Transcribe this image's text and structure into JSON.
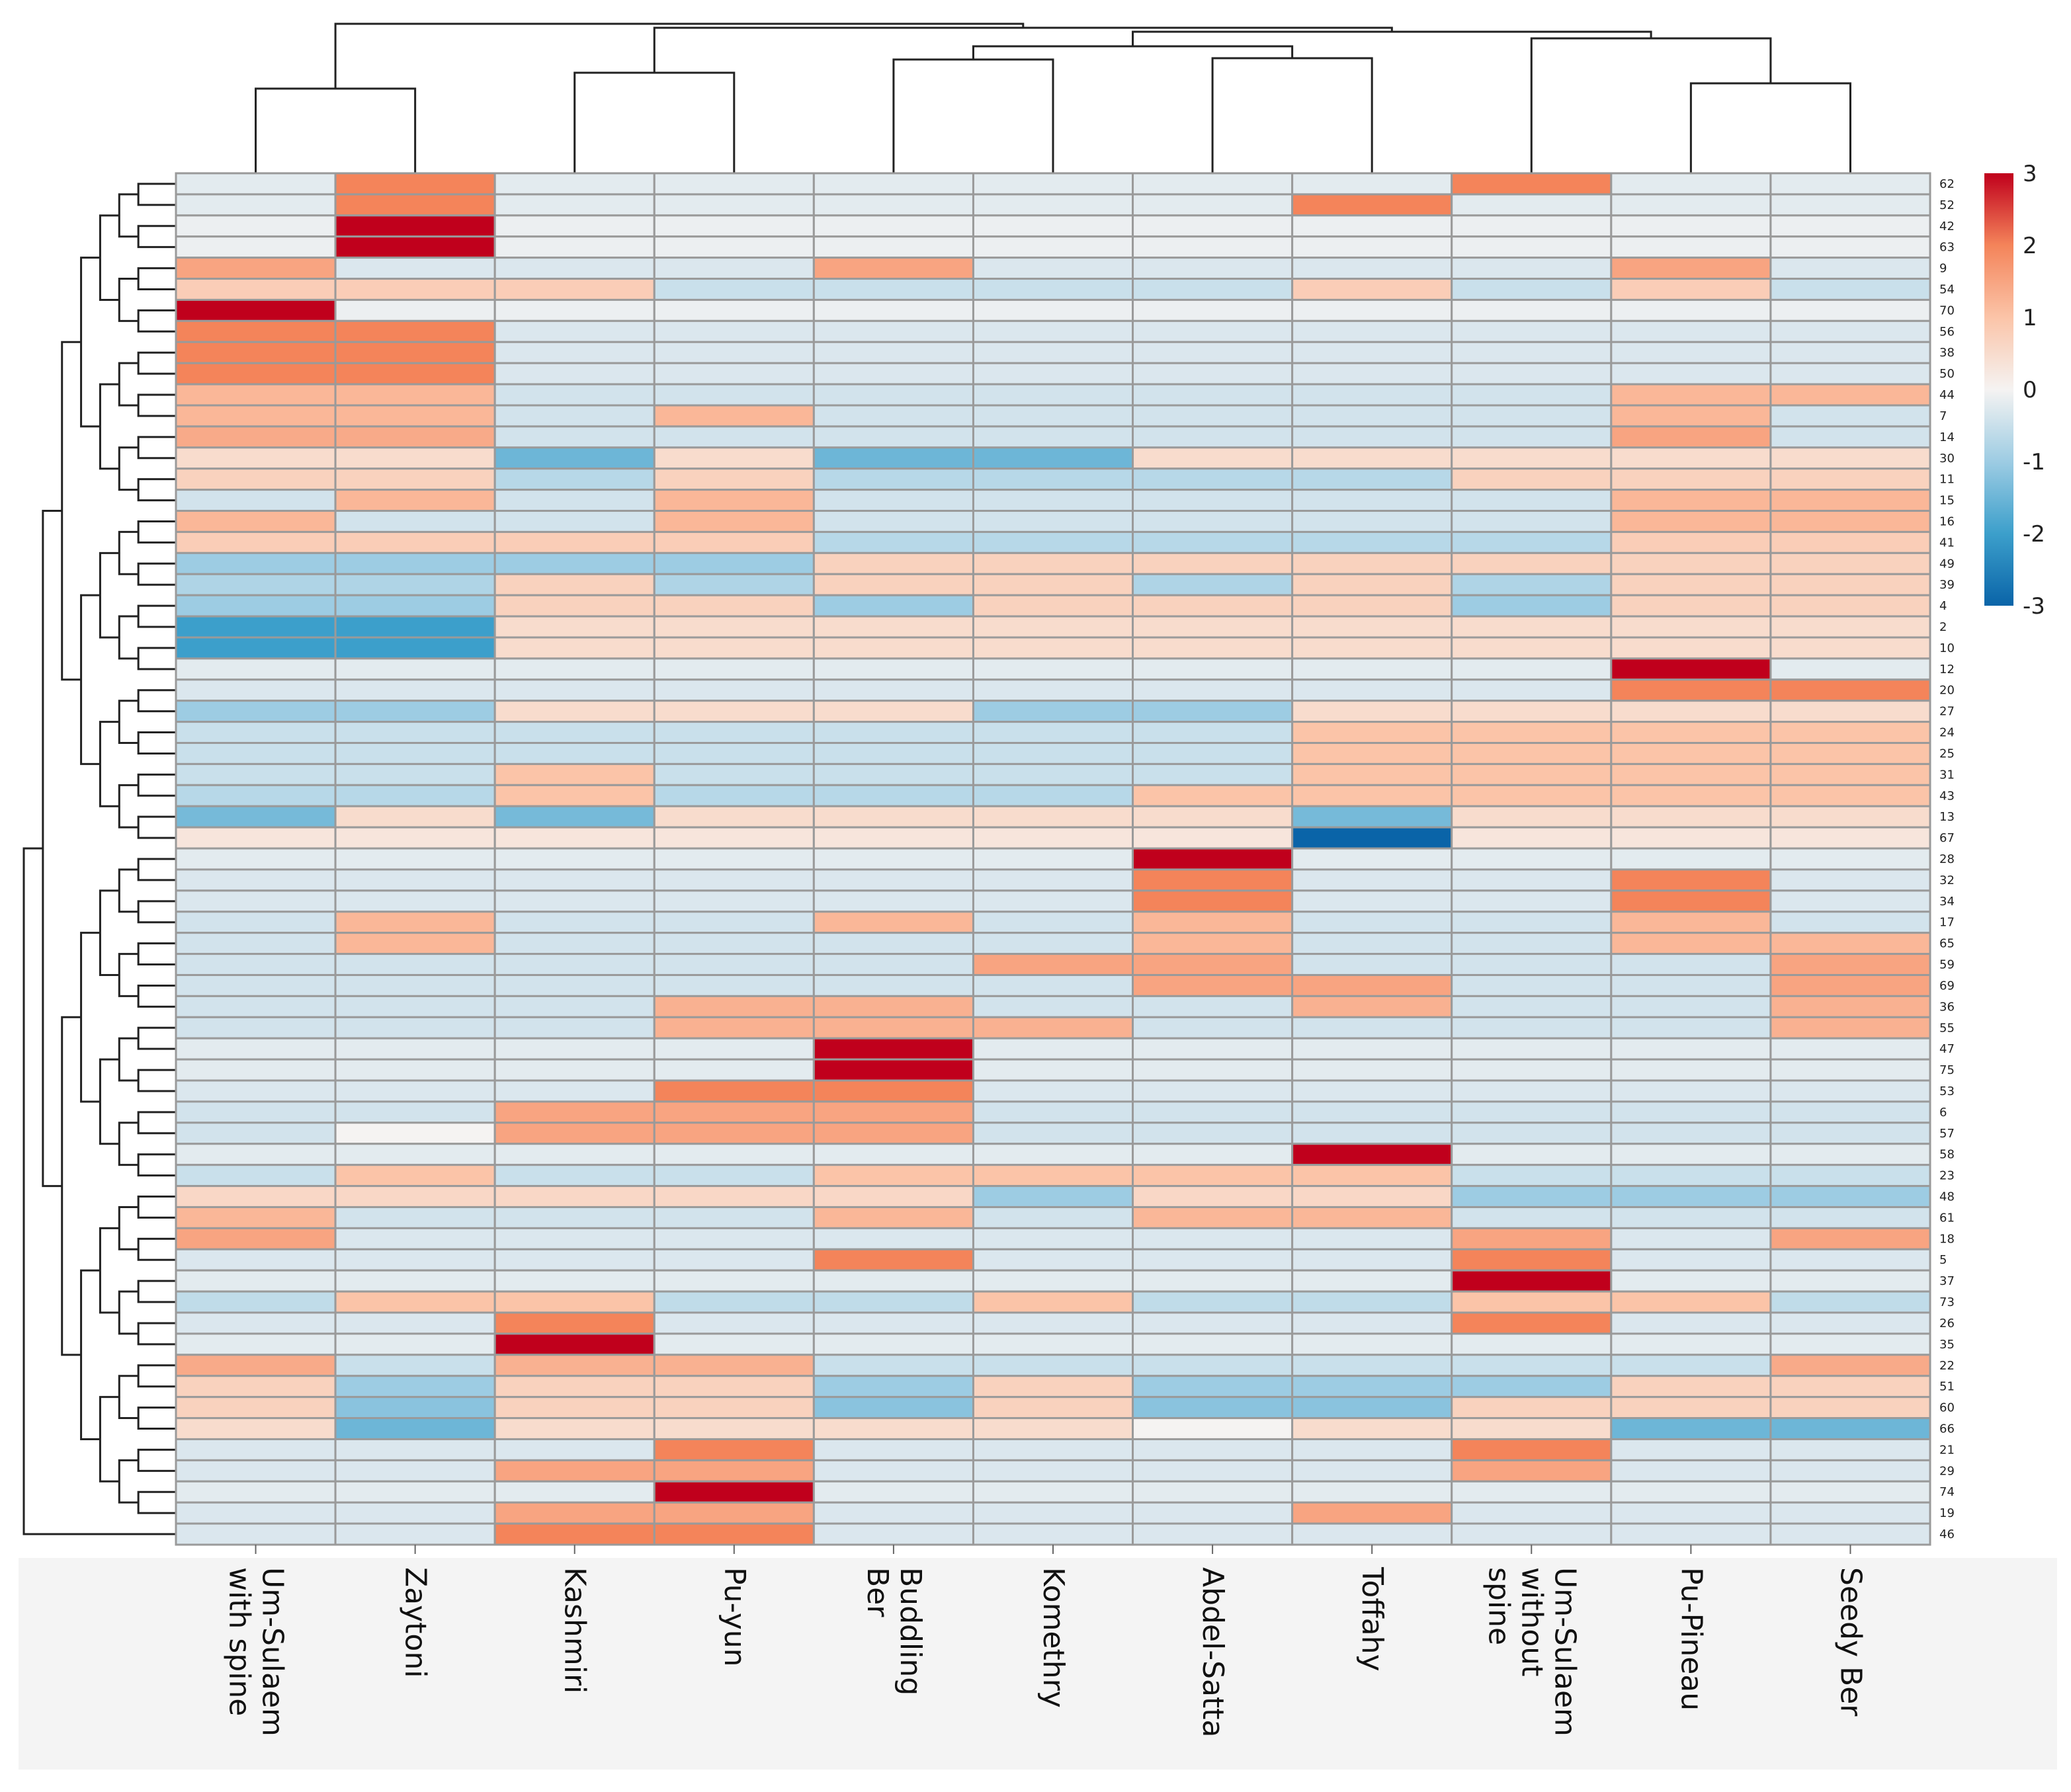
{
  "chart_data": {
    "type": "heatmap",
    "title": "",
    "columns": [
      "Um-Sulaem\nwith spine",
      "Zaytoni",
      "Kashmiri",
      "Pu-yun",
      "Buddling\nBer",
      "Komethry",
      "Abdel-Satta",
      "Toffahy",
      "Um-Sulaem\nwithout\nspine",
      "Pu-Pineau",
      "Seedy Ber"
    ],
    "rows": [
      "62",
      "52",
      "42",
      "63",
      "9",
      "54",
      "70",
      "56",
      "38",
      "50",
      "44",
      "7",
      "14",
      "30",
      "11",
      "15",
      "16",
      "41",
      "49",
      "39",
      "4",
      "2",
      "10",
      "12",
      "20",
      "27",
      "24",
      "25",
      "31",
      "43",
      "13",
      "67",
      "28",
      "32",
      "34",
      "17",
      "65",
      "59",
      "69",
      "36",
      "55",
      "47",
      "75",
      "53",
      "6",
      "57",
      "58",
      "23",
      "48",
      "61",
      "18",
      "5",
      "37",
      "73",
      "26",
      "35",
      "22",
      "51",
      "60",
      "66",
      "21",
      "29",
      "74",
      "19",
      "46"
    ],
    "values": [
      [
        -0.2,
        2,
        -0.2,
        -0.2,
        -0.2,
        -0.2,
        -0.2,
        -0.2,
        2,
        -0.2,
        -0.2
      ],
      [
        -0.2,
        2,
        -0.2,
        -0.2,
        -0.2,
        -0.2,
        -0.2,
        2,
        -0.2,
        -0.2,
        -0.2
      ],
      [
        -0.1,
        3,
        -0.1,
        -0.1,
        -0.1,
        -0.1,
        -0.1,
        -0.1,
        -0.1,
        -0.1,
        -0.1
      ],
      [
        -0.1,
        3,
        -0.1,
        -0.1,
        -0.1,
        -0.1,
        -0.1,
        -0.1,
        -0.1,
        -0.1,
        -0.1
      ],
      [
        1.5,
        -0.3,
        -0.3,
        -0.3,
        1.5,
        -0.3,
        -0.3,
        -0.3,
        -0.3,
        1.5,
        -0.3
      ],
      [
        0.8,
        0.8,
        0.8,
        -0.5,
        -0.5,
        -0.5,
        -0.5,
        0.8,
        -0.5,
        0.8,
        -0.5
      ],
      [
        3,
        -0.1,
        -0.1,
        -0.1,
        -0.1,
        -0.1,
        -0.1,
        -0.1,
        -0.1,
        -0.1,
        -0.1
      ],
      [
        2,
        2,
        -0.3,
        -0.3,
        -0.3,
        -0.3,
        -0.3,
        -0.3,
        -0.3,
        -0.3,
        -0.3
      ],
      [
        2,
        2,
        -0.3,
        -0.3,
        -0.3,
        -0.3,
        -0.3,
        -0.3,
        -0.3,
        -0.3,
        -0.3
      ],
      [
        2,
        2,
        -0.3,
        -0.3,
        -0.3,
        -0.3,
        -0.3,
        -0.3,
        -0.3,
        -0.3,
        -0.3
      ],
      [
        1.2,
        1.2,
        -0.4,
        -0.4,
        -0.4,
        -0.4,
        -0.4,
        -0.4,
        -0.4,
        1.2,
        1.2
      ],
      [
        1.2,
        1.2,
        -0.4,
        1.2,
        -0.4,
        -0.4,
        -0.4,
        -0.4,
        -0.4,
        1.2,
        -0.4
      ],
      [
        1.4,
        1.4,
        -0.4,
        -0.4,
        -0.4,
        -0.4,
        -0.4,
        -0.4,
        -0.4,
        1.5,
        -0.4
      ],
      [
        0.5,
        0.5,
        -1.5,
        0.5,
        -1.5,
        -1.5,
        0.5,
        0.5,
        0.5,
        0.5,
        0.5
      ],
      [
        0.7,
        0.7,
        -0.7,
        0.7,
        -0.7,
        -0.7,
        -0.7,
        -0.7,
        0.7,
        0.7,
        0.7
      ],
      [
        -0.4,
        1.2,
        -0.4,
        1.2,
        -0.4,
        -0.4,
        -0.4,
        -0.4,
        -0.4,
        1.2,
        1.2
      ],
      [
        1.2,
        -0.4,
        -0.4,
        1.2,
        -0.4,
        -0.4,
        -0.4,
        -0.4,
        -0.4,
        1.2,
        1.2
      ],
      [
        0.8,
        0.8,
        0.8,
        0.8,
        -0.7,
        -0.7,
        -0.7,
        -0.7,
        -0.7,
        0.8,
        0.8
      ],
      [
        -1,
        -1,
        -1,
        -1,
        0.7,
        0.7,
        0.7,
        0.7,
        0.7,
        0.7,
        0.7
      ],
      [
        -0.8,
        -0.8,
        0.7,
        -0.8,
        0.7,
        0.7,
        -0.8,
        0.7,
        -0.8,
        0.7,
        0.7
      ],
      [
        -1,
        -1,
        0.7,
        0.7,
        -1,
        0.7,
        0.7,
        0.7,
        -1,
        0.7,
        0.7
      ],
      [
        -2,
        -2,
        0.5,
        0.5,
        0.5,
        0.5,
        0.5,
        0.5,
        0.5,
        0.5,
        0.5
      ],
      [
        -2,
        -2,
        0.5,
        0.5,
        0.5,
        0.5,
        0.5,
        0.5,
        0.5,
        0.5,
        0.5
      ],
      [
        -0.2,
        -0.2,
        -0.2,
        -0.2,
        -0.2,
        -0.2,
        -0.2,
        -0.2,
        -0.2,
        3,
        -0.2
      ],
      [
        -0.3,
        -0.3,
        -0.3,
        -0.3,
        -0.3,
        -0.3,
        -0.3,
        -0.3,
        -0.3,
        2,
        2
      ],
      [
        -1,
        -1,
        0.5,
        0.5,
        0.5,
        -1,
        -1,
        0.5,
        0.5,
        0.5,
        0.5
      ],
      [
        -0.5,
        -0.5,
        -0.5,
        -0.5,
        -0.5,
        -0.5,
        -0.5,
        1,
        1,
        1,
        1
      ],
      [
        -0.5,
        -0.5,
        -0.5,
        -0.5,
        -0.5,
        -0.5,
        -0.5,
        1,
        1,
        1,
        1
      ],
      [
        -0.5,
        -0.5,
        1,
        -0.5,
        -0.5,
        -0.5,
        -0.5,
        1,
        1,
        1,
        1
      ],
      [
        -0.7,
        -0.7,
        1,
        -0.7,
        -0.7,
        -0.7,
        1,
        1,
        1,
        1,
        1
      ],
      [
        -1.4,
        0.5,
        -1.4,
        0.5,
        0.5,
        0.5,
        0.5,
        -1.4,
        0.5,
        0.5,
        0.5
      ],
      [
        0.3,
        0.3,
        0.3,
        0.3,
        0.3,
        0.3,
        0.3,
        -3,
        0.3,
        0.3,
        0.3
      ],
      [
        -0.2,
        -0.2,
        -0.2,
        -0.2,
        -0.2,
        -0.2,
        3,
        -0.2,
        -0.2,
        -0.2,
        -0.2
      ],
      [
        -0.3,
        -0.3,
        -0.3,
        -0.3,
        -0.3,
        -0.3,
        2,
        -0.3,
        -0.3,
        2,
        -0.3
      ],
      [
        -0.3,
        -0.3,
        -0.3,
        -0.3,
        -0.3,
        -0.3,
        2,
        -0.3,
        -0.3,
        2,
        -0.3
      ],
      [
        -0.4,
        1.2,
        -0.4,
        -0.4,
        1.2,
        -0.4,
        1.2,
        -0.4,
        -0.4,
        1.2,
        -0.4
      ],
      [
        -0.4,
        1.2,
        -0.4,
        -0.4,
        -0.4,
        -0.4,
        1.2,
        -0.4,
        -0.4,
        1.2,
        1.2
      ],
      [
        -0.4,
        -0.4,
        -0.4,
        -0.4,
        -0.4,
        1.5,
        1.5,
        -0.4,
        -0.4,
        -0.4,
        1.5
      ],
      [
        -0.4,
        -0.4,
        -0.4,
        -0.4,
        -0.4,
        -0.4,
        1.5,
        1.5,
        -0.4,
        -0.4,
        1.5
      ],
      [
        -0.4,
        -0.4,
        -0.4,
        1.3,
        1.3,
        -0.4,
        -0.4,
        1.3,
        -0.4,
        -0.4,
        1.3
      ],
      [
        -0.4,
        -0.4,
        -0.4,
        1.3,
        1.3,
        1.3,
        -0.4,
        -0.4,
        -0.4,
        -0.4,
        1.3
      ],
      [
        -0.2,
        -0.2,
        -0.2,
        -0.2,
        3,
        -0.2,
        -0.2,
        -0.2,
        -0.2,
        -0.2,
        -0.2
      ],
      [
        -0.2,
        -0.2,
        -0.2,
        -0.2,
        3,
        -0.2,
        -0.2,
        -0.2,
        -0.2,
        -0.2,
        -0.2
      ],
      [
        -0.3,
        -0.3,
        -0.3,
        2,
        2,
        -0.3,
        -0.3,
        -0.3,
        -0.3,
        -0.3,
        -0.3
      ],
      [
        -0.4,
        -0.4,
        1.5,
        1.5,
        1.5,
        -0.4,
        -0.4,
        -0.4,
        -0.4,
        -0.4,
        -0.4
      ],
      [
        -0.4,
        0,
        1.5,
        1.5,
        1.5,
        -0.4,
        -0.4,
        -0.4,
        -0.4,
        -0.4,
        -0.4
      ],
      [
        -0.2,
        -0.2,
        -0.2,
        -0.2,
        -0.2,
        -0.2,
        -0.2,
        3,
        -0.2,
        -0.2,
        -0.2
      ],
      [
        -0.5,
        1,
        -0.5,
        -0.5,
        1,
        1,
        1,
        1,
        -0.5,
        -0.5,
        -0.5
      ],
      [
        0.6,
        0.6,
        0.6,
        0.6,
        0.6,
        -1,
        0.6,
        0.6,
        -1,
        -1,
        -1
      ],
      [
        1.2,
        -0.4,
        -0.4,
        -0.4,
        1.2,
        -0.4,
        1.2,
        1.2,
        -0.4,
        -0.4,
        -0.4
      ],
      [
        1.5,
        -0.3,
        -0.3,
        -0.3,
        -0.3,
        -0.3,
        -0.3,
        -0.3,
        1.5,
        -0.3,
        1.5
      ],
      [
        -0.3,
        -0.3,
        -0.3,
        -0.3,
        2,
        -0.3,
        -0.3,
        -0.3,
        2,
        -0.3,
        -0.3
      ],
      [
        -0.2,
        -0.2,
        -0.2,
        -0.2,
        -0.2,
        -0.2,
        -0.2,
        -0.2,
        3,
        -0.2,
        -0.2
      ],
      [
        -0.6,
        1,
        1,
        -0.6,
        -0.6,
        1,
        -0.6,
        -0.6,
        1,
        1,
        -0.6
      ],
      [
        -0.3,
        -0.3,
        2,
        -0.3,
        -0.3,
        -0.3,
        -0.3,
        -0.3,
        2,
        -0.3,
        -0.3
      ],
      [
        -0.2,
        -0.2,
        3,
        -0.2,
        -0.2,
        -0.2,
        -0.2,
        -0.2,
        -0.2,
        -0.2,
        -0.2
      ],
      [
        1.4,
        -0.5,
        1.3,
        1.3,
        -0.5,
        -0.5,
        -0.5,
        -0.5,
        -0.5,
        -0.5,
        1.4
      ],
      [
        0.7,
        -1,
        0.7,
        0.7,
        -1,
        0.7,
        -1,
        -1,
        -1,
        0.7,
        0.7
      ],
      [
        0.7,
        -1.2,
        0.7,
        0.7,
        -1.2,
        0.7,
        -1.2,
        -1.2,
        0.7,
        0.7,
        0.7
      ],
      [
        0.5,
        -1.5,
        0.5,
        0.5,
        0.5,
        0.5,
        0,
        0.5,
        0.5,
        -1.5,
        -1.5
      ],
      [
        -0.3,
        -0.3,
        -0.3,
        2,
        -0.3,
        -0.3,
        -0.3,
        -0.3,
        2,
        -0.3,
        -0.3
      ],
      [
        -0.3,
        -0.3,
        1.5,
        1.5,
        -0.3,
        -0.3,
        -0.3,
        -0.3,
        1.5,
        -0.3,
        -0.3
      ],
      [
        -0.2,
        -0.2,
        -0.2,
        3,
        -0.2,
        -0.2,
        -0.2,
        -0.2,
        -0.2,
        -0.2,
        -0.2
      ],
      [
        -0.3,
        -0.3,
        1.5,
        1.5,
        -0.3,
        -0.3,
        -0.3,
        1.5,
        -0.3,
        -0.3,
        -0.3
      ],
      [
        -0.3,
        -0.3,
        2,
        2,
        -0.3,
        -0.3,
        -0.3,
        -0.3,
        -0.3,
        -0.3,
        -0.3
      ]
    ],
    "color_scale": {
      "range": [
        -3,
        3
      ],
      "ticks": [
        "3",
        "2",
        "1",
        "0",
        "-1",
        "-2",
        "-3"
      ],
      "stops": [
        {
          "v": -3,
          "color": "#0a64a8"
        },
        {
          "v": -2,
          "color": "#3c9fcb"
        },
        {
          "v": -1,
          "color": "#9dcce3"
        },
        {
          "v": 0,
          "color": "#f5f3f2"
        },
        {
          "v": 1,
          "color": "#fbc4a8"
        },
        {
          "v": 2,
          "color": "#f4845a"
        },
        {
          "v": 3,
          "color": "#c0001c"
        }
      ],
      "legend_position": "top-right"
    },
    "row_dendrogram": true,
    "column_dendrogram": true
  }
}
